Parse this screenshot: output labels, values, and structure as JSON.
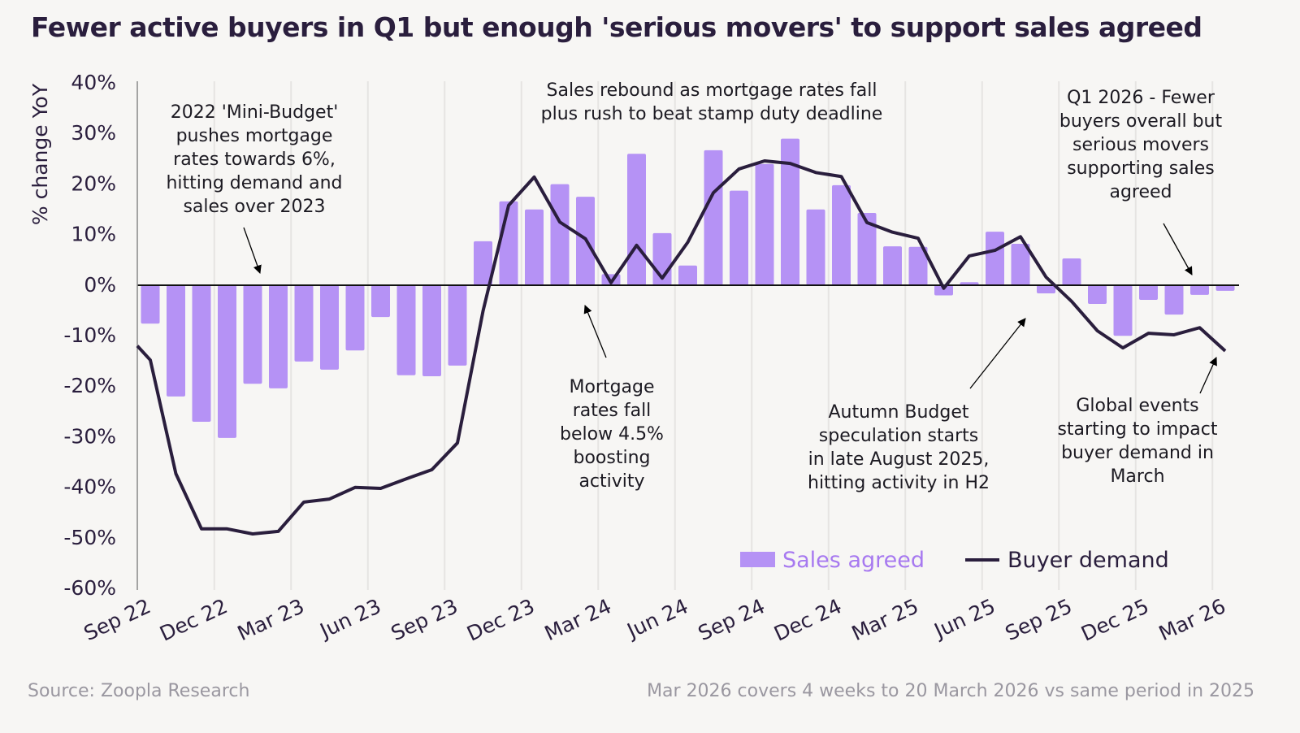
{
  "title": "Fewer active buyers in Q1 but enough 'serious movers' to support sales agreed",
  "footer": {
    "source": "Source: Zoopla Research",
    "note": "Mar 2026 covers 4 weeks to 20 March 2026 vs same period in 2025"
  },
  "colors": {
    "sales_agreed": "#b592f5",
    "buyer_demand": "#2a1e3d",
    "background": "#f7f6f4"
  },
  "chart_data": {
    "type": "bar+line",
    "title": "Fewer active buyers in Q1 but enough 'serious movers' to support sales agreed",
    "ylabel": "% change YoY",
    "xlabel": "",
    "ylim": [
      -60,
      40
    ],
    "yticks": [
      "40%",
      "30%",
      "20%",
      "10%",
      "0%",
      "-10%",
      "-20%",
      "-30%",
      "-40%",
      "-50%",
      "-60%"
    ],
    "xticks": [
      "Sep 22",
      "Dec 22",
      "Mar 23",
      "Jun 23",
      "Sep 23",
      "Dec 23",
      "Mar 24",
      "Jun 24",
      "Sep 24",
      "Dec 24",
      "Mar 25",
      "Jun 25",
      "Sep 25",
      "Dec 25",
      "Mar 26"
    ],
    "grid": "vertical",
    "legend_position": "bottom-right",
    "categories": [
      "Sep 22",
      "Oct 22",
      "Nov 22",
      "Dec 22",
      "Jan 23",
      "Feb 23",
      "Mar 23",
      "Apr 23",
      "May 23",
      "Jun 23",
      "Jul 23",
      "Aug 23",
      "Sep 23",
      "Oct 23",
      "Nov 23",
      "Dec 23",
      "Jan 24",
      "Feb 24",
      "Mar 24",
      "Apr 24",
      "May 24",
      "Jun 24",
      "Jul 24",
      "Aug 24",
      "Sep 24",
      "Oct 24",
      "Nov 24",
      "Dec 24",
      "Jan 25",
      "Feb 25",
      "Mar 25",
      "Apr 25",
      "May 25",
      "Jun 25",
      "Jul 25",
      "Aug 25",
      "Sep 25",
      "Oct 25",
      "Nov 25",
      "Dec 25",
      "Jan 26",
      "Feb 26",
      "Mar 26"
    ],
    "series": [
      {
        "name": "Sales agreed",
        "type": "bar",
        "values": [
          -7.6,
          -22,
          -27,
          -30.2,
          -19.5,
          -20.4,
          -15.1,
          -16.7,
          -12.9,
          -6.3,
          -17.8,
          -18,
          -15.9,
          8.7,
          16.6,
          15,
          20,
          17.5,
          2.2,
          26,
          10.3,
          3.9,
          26.7,
          18.7,
          24,
          29,
          15,
          19.8,
          14.3,
          7.7,
          7.6,
          -2,
          0.6,
          10.6,
          8.2,
          -1.6,
          5.3,
          -3.7,
          -10,
          -2.9,
          -5.8,
          -1.9,
          -1.1
        ]
      },
      {
        "name": "Buyer demand",
        "type": "line",
        "values": [
          -14.8,
          -37.3,
          -48.2,
          -48.2,
          -49.2,
          -48.7,
          -42.9,
          -42.3,
          -40,
          -40.2,
          -38.3,
          -36.5,
          -31.2,
          -5.1,
          15.8,
          21.4,
          12.5,
          9.2,
          0.5,
          7.9,
          1.4,
          8.5,
          18.3,
          23,
          24.6,
          24.1,
          22.3,
          21.5,
          12.4,
          10.5,
          9.3,
          -0.6,
          5.8,
          6.9,
          9.6,
          1.6,
          -3.2,
          -9,
          -12.4,
          -9.5,
          -9.8,
          -8.4,
          -13
        ]
      }
    ],
    "annotations": [
      {
        "lines": [
          "2022 'Mini-Budget'",
          "pushes mortgage",
          "rates towards 6%,",
          "hitting demand and",
          "sales over 2023"
        ]
      },
      {
        "lines": [
          "Sales rebound as mortgage rates fall",
          "plus rush to beat stamp duty deadline"
        ]
      },
      {
        "lines": [
          "Q1 2026 - Fewer",
          "buyers overall but",
          "serious movers",
          "supporting sales",
          "agreed"
        ]
      },
      {
        "lines": [
          "Mortgage",
          "rates fall",
          "below 4.5%",
          "boosting",
          "activity"
        ]
      },
      {
        "lines": [
          "Autumn Budget",
          "speculation starts",
          "in late August 2025,",
          "hitting activity in H2"
        ]
      },
      {
        "lines": [
          "Global events",
          "starting to impact",
          "buyer demand in",
          "March"
        ]
      }
    ]
  }
}
